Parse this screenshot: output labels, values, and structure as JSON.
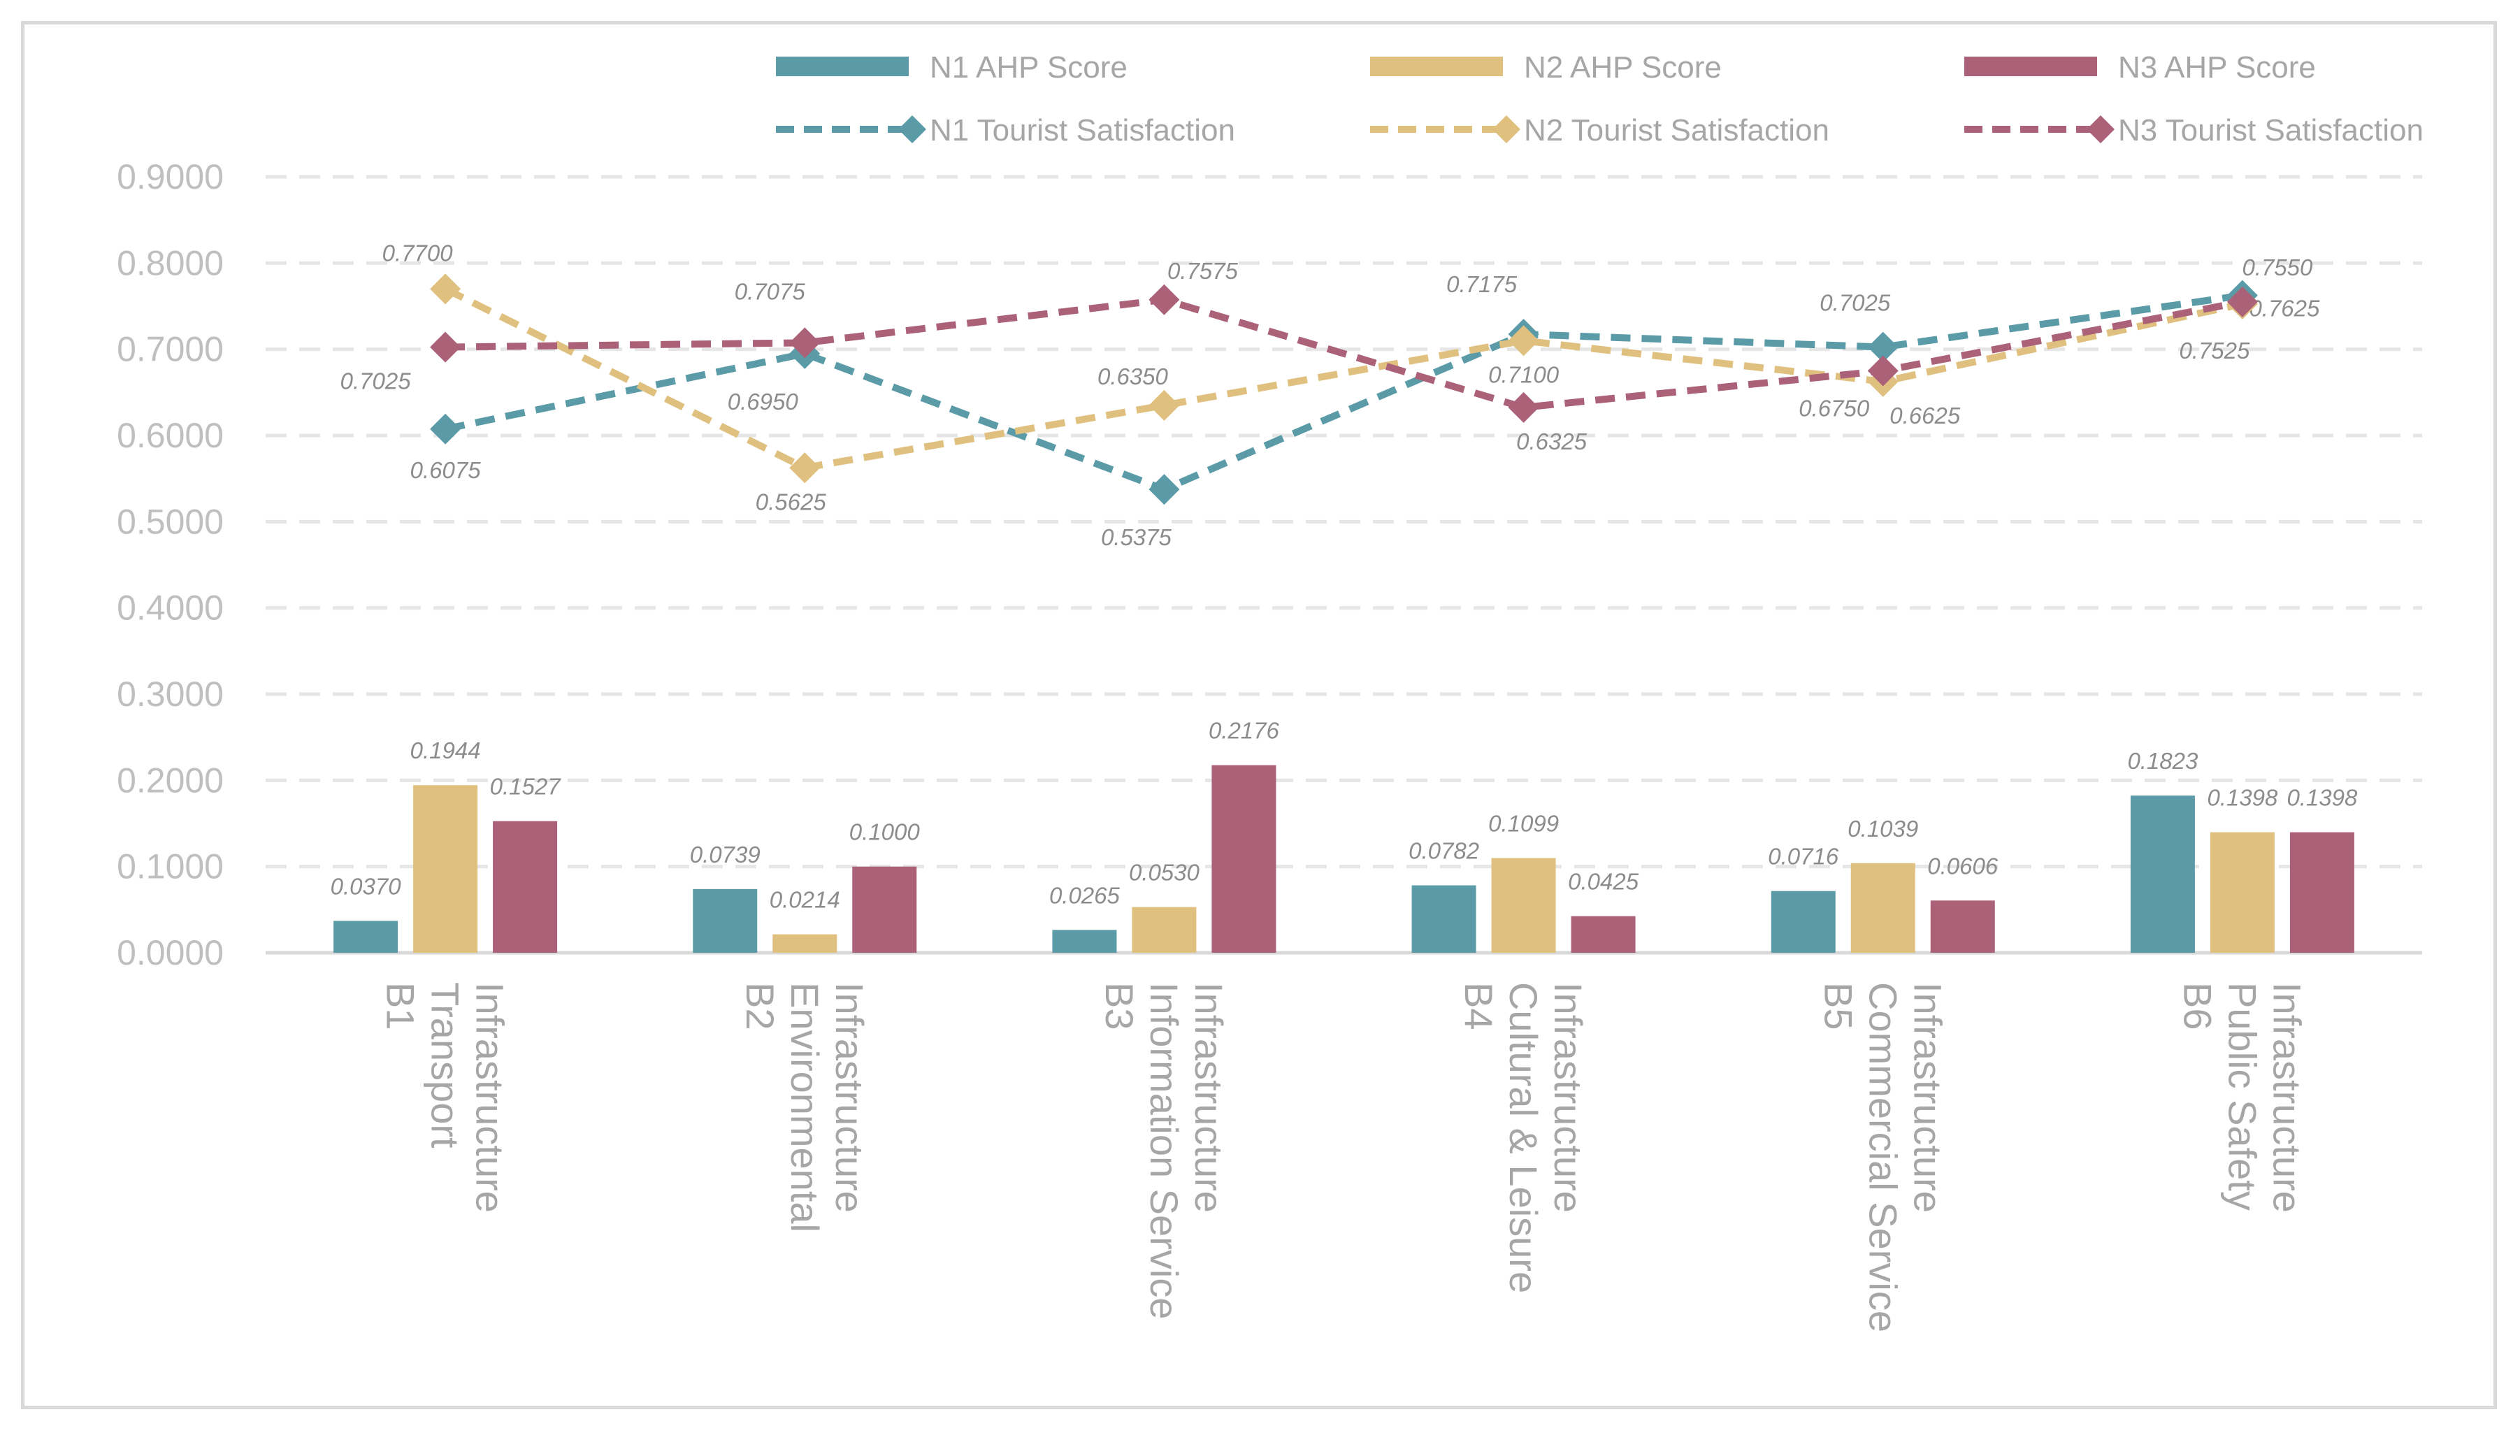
{
  "chart_data": {
    "type": "bar+line",
    "categories": [
      [
        "B1",
        "Transport",
        "Infrastructure"
      ],
      [
        "B2",
        "Environmental",
        "Infrastructure"
      ],
      [
        "B3",
        "Information Service",
        "Infrastructure"
      ],
      [
        "B4",
        "Cultural & Leisure",
        "Infrastructure"
      ],
      [
        "B5",
        "Commercial Service",
        "Infrastructure"
      ],
      [
        "B6",
        "Public Safety",
        "Infrastructure"
      ]
    ],
    "ylim": [
      0,
      0.9
    ],
    "yticks": [
      "0.0000",
      "0.1000",
      "0.2000",
      "0.3000",
      "0.4000",
      "0.5000",
      "0.6000",
      "0.7000",
      "0.8000",
      "0.9000"
    ],
    "bar_series": [
      {
        "name": "N1 AHP Score",
        "color": "#5a9ba7",
        "values": [
          0.037,
          0.0739,
          0.0265,
          0.0782,
          0.0716,
          0.1823
        ],
        "labels": [
          "0.0370",
          "0.0739",
          "0.0265",
          "0.0782",
          "0.0716",
          "0.1823"
        ]
      },
      {
        "name": "N2 AHP Score",
        "color": "#dfc07e",
        "values": [
          0.1944,
          0.0214,
          0.053,
          0.1099,
          0.1039,
          0.1398
        ],
        "labels": [
          "0.1944",
          "0.0214",
          "0.0530",
          "0.1099",
          "0.1039",
          "0.1398"
        ]
      },
      {
        "name": "N3 AHP Score",
        "color": "#ab6279",
        "values": [
          0.1527,
          0.1,
          0.2176,
          0.0425,
          0.0606,
          0.1398
        ],
        "labels": [
          "0.1527",
          "0.1000",
          "0.2176",
          "0.0425",
          "0.0606",
          "0.1398"
        ]
      }
    ],
    "line_series": [
      {
        "name": "N1 Tourist Satisfaction",
        "color": "#5a9ba7",
        "values": [
          0.6075,
          0.695,
          0.5375,
          0.7175,
          0.7025,
          0.7625
        ],
        "labels": [
          "0.6075",
          "0.6950",
          "0.5375",
          "0.7175",
          "0.7025",
          "0.7625"
        ]
      },
      {
        "name": "N2 Tourist Satisfaction",
        "color": "#dfc07e",
        "values": [
          0.77,
          0.5625,
          0.635,
          0.71,
          0.6625,
          0.7525
        ],
        "labels": [
          "0.7700",
          "0.5625",
          "0.6350",
          "0.7100",
          "0.6625",
          "0.7525"
        ]
      },
      {
        "name": "N3 Tourist Satisfaction",
        "color": "#ab6279",
        "values": [
          0.7025,
          0.7075,
          0.7575,
          0.6325,
          0.675,
          0.755
        ],
        "labels": [
          "0.7025",
          "0.7075",
          "0.7575",
          "0.6325",
          "0.6750",
          "0.7550"
        ]
      }
    ],
    "legend": [
      "N1 AHP Score",
      "N2 AHP Score",
      "N3 AHP Score",
      "N1 Tourist Satisfaction",
      "N2 Tourist Satisfaction",
      "N3 Tourist Satisfaction"
    ],
    "legend_position": "top",
    "grid": true,
    "grid_style": "dashed horizontal"
  }
}
